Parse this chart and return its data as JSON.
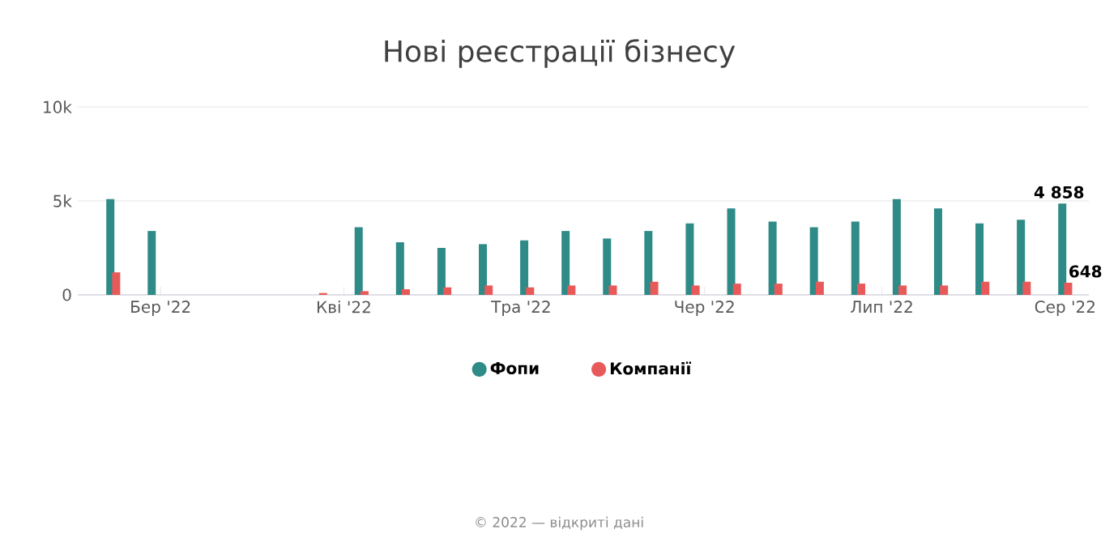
{
  "chart_data": {
    "type": "bar",
    "title": "Нові реєстрації бізнесу",
    "x": [
      "2022-02-21",
      "2022-02-28",
      "2022-03-07",
      "2022-03-14",
      "2022-03-21",
      "2022-03-28",
      "2022-04-04",
      "2022-04-11",
      "2022-04-18",
      "2022-04-25",
      "2022-05-02",
      "2022-05-09",
      "2022-05-16",
      "2022-05-23",
      "2022-05-30",
      "2022-06-06",
      "2022-06-13",
      "2022-06-20",
      "2022-06-27",
      "2022-07-04",
      "2022-07-11",
      "2022-07-18",
      "2022-07-25",
      "2022-08-01"
    ],
    "series": [
      {
        "name": "Фопи",
        "color": "#2e8b87",
        "values": [
          5100,
          3400,
          0,
          0,
          0,
          0,
          3600,
          2800,
          2500,
          2700,
          2900,
          3400,
          3000,
          3400,
          3800,
          4600,
          3900,
          3600,
          3900,
          5100,
          4600,
          3800,
          4000,
          4858
        ],
        "value_labels": [
          null,
          null,
          null,
          null,
          null,
          null,
          null,
          null,
          null,
          null,
          null,
          null,
          null,
          null,
          null,
          null,
          null,
          null,
          null,
          null,
          null,
          null,
          null,
          "4 858"
        ]
      },
      {
        "name": "Компанії",
        "color": "#e85a5a",
        "values": [
          1200,
          0,
          0,
          0,
          0,
          100,
          200,
          300,
          400,
          500,
          400,
          500,
          500,
          700,
          500,
          600,
          600,
          700,
          600,
          500,
          500,
          700,
          700,
          648
        ],
        "value_labels": [
          null,
          null,
          null,
          null,
          null,
          null,
          null,
          null,
          null,
          null,
          null,
          null,
          null,
          null,
          null,
          null,
          null,
          null,
          null,
          null,
          null,
          null,
          null,
          "648"
        ]
      }
    ],
    "xlim": [
      "2022-02-15",
      "2022-08-05"
    ],
    "xticks": [
      {
        "value": "2022-03-01",
        "label": "Бер '22"
      },
      {
        "value": "2022-04-01",
        "label": "Кві '22"
      },
      {
        "value": "2022-05-01",
        "label": "Тра '22"
      },
      {
        "value": "2022-06-01",
        "label": "Чер '22"
      },
      {
        "value": "2022-07-01",
        "label": "Лип '22"
      },
      {
        "value": "2022-08-01",
        "label": "Сер '22"
      }
    ],
    "ylim": [
      0,
      10000
    ],
    "yticks": [
      0,
      {
        "value": 5000,
        "label": "5k"
      },
      {
        "value": 10000,
        "label": "10k"
      }
    ],
    "grid": "y",
    "legend": "bottom",
    "marker": "circle",
    "annotations": [
      "© 2022 — відкриті дані"
    ]
  }
}
